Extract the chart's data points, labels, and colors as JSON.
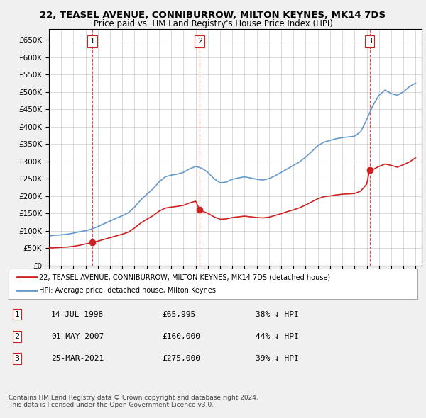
{
  "title": "22, TEASEL AVENUE, CONNIBURROW, MILTON KEYNES, MK14 7DS",
  "subtitle": "Price paid vs. HM Land Registry's House Price Index (HPI)",
  "xlim_start": 1995.0,
  "xlim_end": 2025.5,
  "ylim": [
    0,
    680000
  ],
  "yticks": [
    0,
    50000,
    100000,
    150000,
    200000,
    250000,
    300000,
    350000,
    400000,
    450000,
    500000,
    550000,
    600000,
    650000
  ],
  "ytick_labels": [
    "£0",
    "£50K",
    "£100K",
    "£150K",
    "£200K",
    "£250K",
    "£300K",
    "£350K",
    "£400K",
    "£450K",
    "£500K",
    "£550K",
    "£600K",
    "£650K"
  ],
  "hpi_color": "#6699cc",
  "price_color": "#cc2222",
  "sale_marker_color": "#cc2222",
  "dashed_line_color": "#cc2222",
  "annotation_bg": "white",
  "annotation_border": "#cc2222",
  "legend_label_red": "22, TEASEL AVENUE, CONNIBURROW, MILTON KEYNES, MK14 7DS (detached house)",
  "legend_label_blue": "HPI: Average price, detached house, Milton Keynes",
  "sale1_year": 1998.54,
  "sale1_price": 65995,
  "sale1_label": "1",
  "sale2_year": 2007.33,
  "sale2_price": 160000,
  "sale2_label": "2",
  "sale3_year": 2021.23,
  "sale3_price": 275000,
  "sale3_label": "3",
  "table_rows": [
    [
      "1",
      "14-JUL-1998",
      "£65,995",
      "38% ↓ HPI"
    ],
    [
      "2",
      "01-MAY-2007",
      "£160,000",
      "44% ↓ HPI"
    ],
    [
      "3",
      "25-MAR-2021",
      "£275,000",
      "39% ↓ HPI"
    ]
  ],
  "footer_text": "Contains HM Land Registry data © Crown copyright and database right 2024.\nThis data is licensed under the Open Government Licence v3.0.",
  "background_color": "#f0f0f0",
  "plot_bg_color": "#ffffff",
  "grid_color": "#cccccc"
}
